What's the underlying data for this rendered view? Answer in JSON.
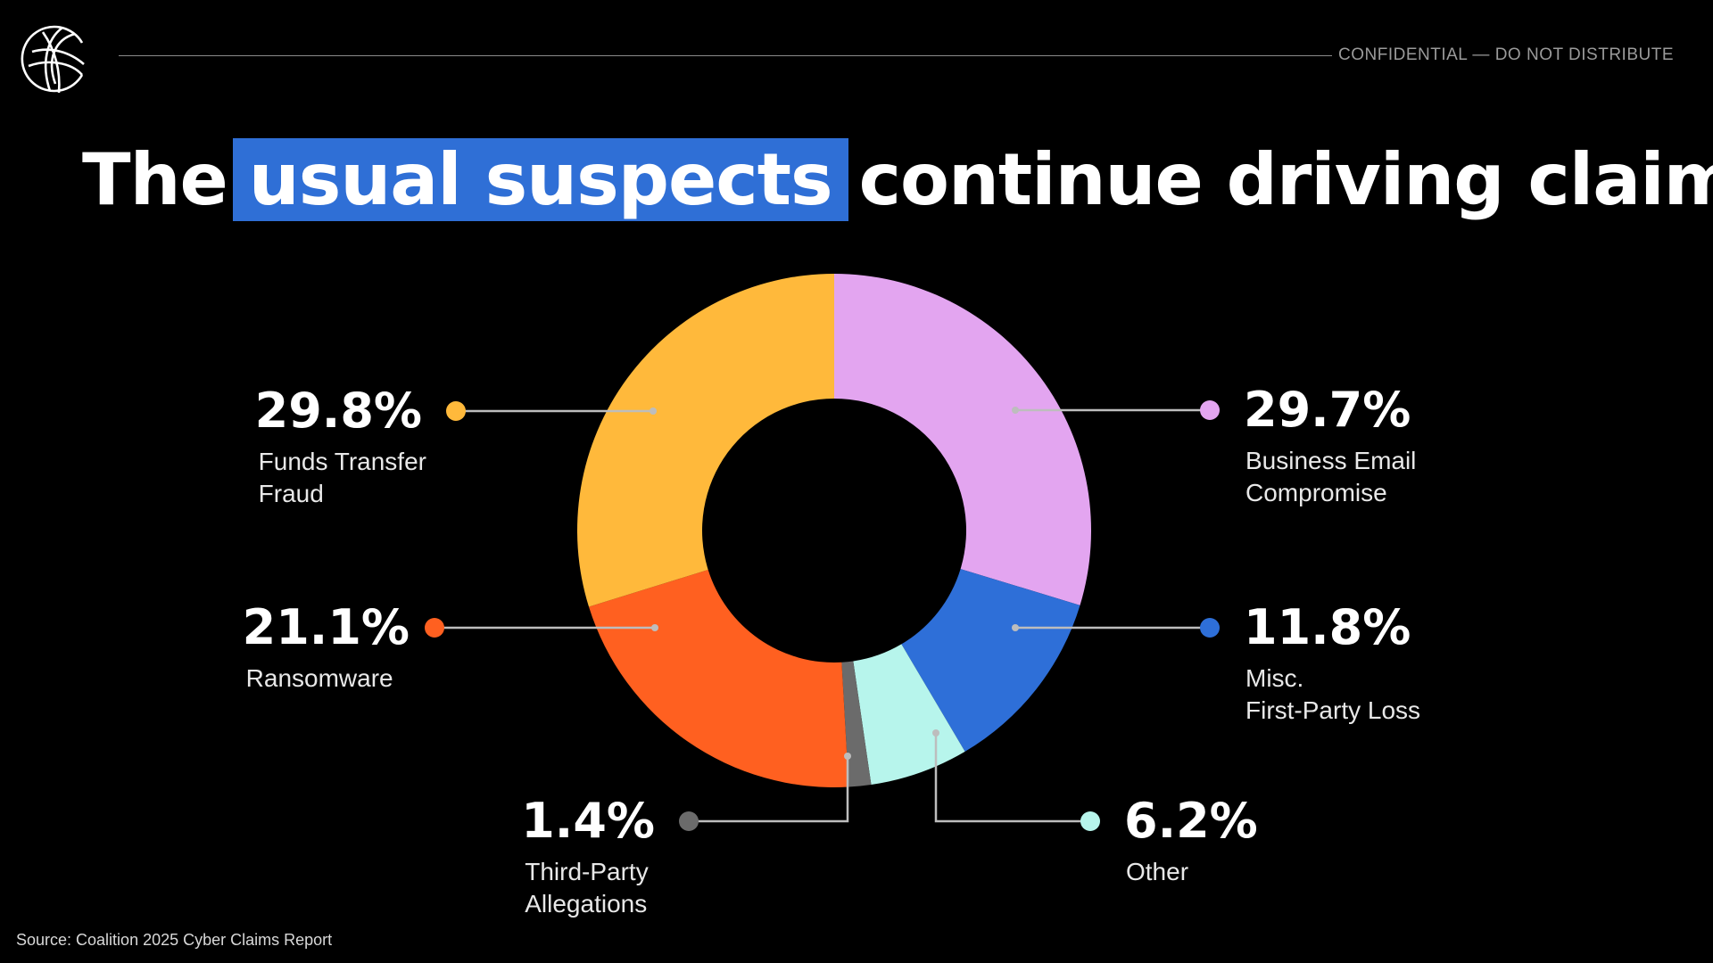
{
  "header": {
    "confidential_label": "CONFIDENTIAL — DO NOT DISTRIBUTE",
    "logo_icon": "coalition-globe-logo-icon"
  },
  "title": {
    "before": "The",
    "highlight": "usual suspects",
    "after": "continue driving claims",
    "highlight_color": "#2f6fd6"
  },
  "footer": {
    "source": "Source: Coalition 2025 Cyber Claims Report"
  },
  "chart_data": {
    "type": "pie",
    "donut": true,
    "title": "",
    "slices": [
      {
        "value_label": "29.7%",
        "value": 29.7,
        "lines": [
          "Business Email",
          "Compromise"
        ],
        "color": "#e3a5f0"
      },
      {
        "value_label": "11.8%",
        "value": 11.8,
        "lines": [
          "Misc.",
          "First-Party Loss"
        ],
        "color": "#2e6fd8"
      },
      {
        "value_label": "6.2%",
        "value": 6.2,
        "lines": [
          "Other"
        ],
        "color": "#b7f5ec"
      },
      {
        "value_label": "1.4%",
        "value": 1.4,
        "lines": [
          "Third-Party",
          "Allegations"
        ],
        "color": "#6b6b6b"
      },
      {
        "value_label": "21.1%",
        "value": 21.1,
        "lines": [
          "Ransomware"
        ],
        "color": "#ff6020"
      },
      {
        "value_label": "29.8%",
        "value": 29.8,
        "lines": [
          "Funds Transfer",
          "Fraud"
        ],
        "color": "#ffb93b"
      }
    ],
    "legend": "callout-labels"
  }
}
